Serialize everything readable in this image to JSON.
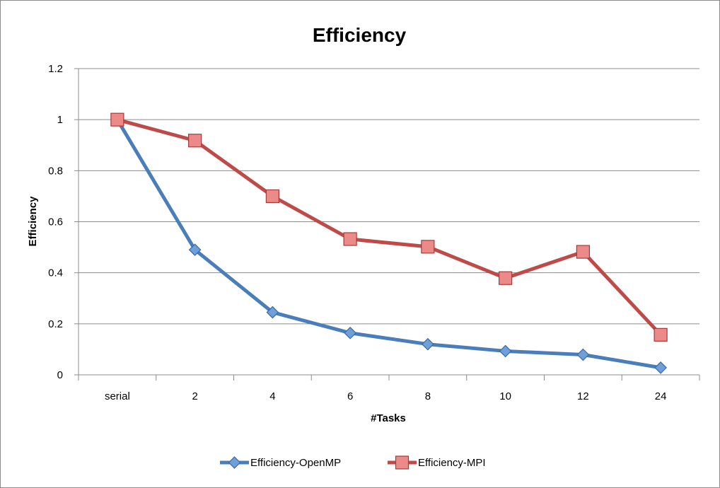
{
  "chart_data": {
    "type": "line",
    "title": "Efficiency",
    "xlabel": "#Tasks",
    "ylabel": "Efficiency",
    "categories": [
      "serial",
      "2",
      "4",
      "6",
      "8",
      "10",
      "12",
      "24"
    ],
    "ylim": [
      0,
      1.2
    ],
    "yticks": [
      "0",
      "0.2",
      "0.4",
      "0.6",
      "0.8",
      "1",
      "1.2"
    ],
    "grid": true,
    "legend_position": "bottom",
    "series": [
      {
        "name": "Efficiency-OpenMP",
        "color": "#4a7ebb",
        "marker": "diamond",
        "values": [
          1.0,
          0.49,
          0.245,
          0.164,
          0.12,
          0.093,
          0.079,
          0.028
        ]
      },
      {
        "name": "Efficiency-MPI",
        "color": "#be4b48",
        "marker": "square",
        "values": [
          1.0,
          0.918,
          0.7,
          0.532,
          0.502,
          0.379,
          0.482,
          0.157
        ]
      }
    ]
  }
}
